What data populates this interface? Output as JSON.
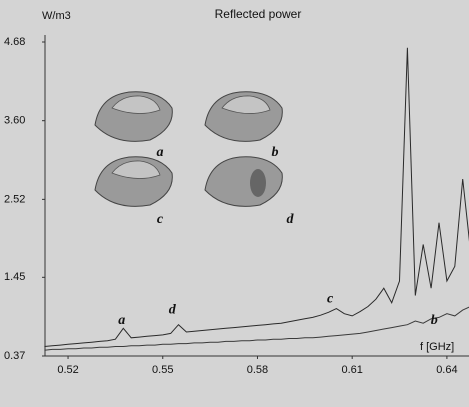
{
  "chart_data": {
    "type": "line",
    "title": "Reflected power",
    "ylabel": "W/m3",
    "xlabel": "f [GHz]",
    "xlim": [
      0.5127,
      0.647
    ],
    "ylim": [
      0.37,
      4.68
    ],
    "xticks": [
      0.52,
      0.55,
      0.58,
      0.61,
      0.64
    ],
    "yticks": [
      0.37,
      1.45,
      2.52,
      {
        "value": 3.6,
        "label": "3.60"
      },
      4.68
    ],
    "x": [
      0.5125,
      0.515,
      0.5175,
      0.52,
      0.5225,
      0.525,
      0.5275,
      0.53,
      0.5325,
      0.535,
      0.5375,
      0.54,
      0.5425,
      0.545,
      0.5475,
      0.55,
      0.5525,
      0.555,
      0.5575,
      0.56,
      0.5625,
      0.565,
      0.5675,
      0.57,
      0.5725,
      0.575,
      0.5775,
      0.58,
      0.5825,
      0.585,
      0.5875,
      0.59,
      0.5925,
      0.595,
      0.5975,
      0.6,
      0.6025,
      0.605,
      0.6075,
      0.61,
      0.6125,
      0.615,
      0.6175,
      0.62,
      0.6225,
      0.625,
      0.6275,
      0.63,
      0.6325,
      0.635,
      0.6375,
      0.64,
      0.6425,
      0.645,
      0.6475
    ],
    "series": [
      {
        "color": "#2a2a2a",
        "values": [
          0.5,
          0.51,
          0.52,
          0.53,
          0.54,
          0.55,
          0.56,
          0.57,
          0.58,
          0.6,
          0.75,
          0.62,
          0.63,
          0.64,
          0.65,
          0.66,
          0.68,
          0.8,
          0.7,
          0.71,
          0.72,
          0.73,
          0.74,
          0.75,
          0.76,
          0.77,
          0.78,
          0.79,
          0.8,
          0.81,
          0.82,
          0.84,
          0.86,
          0.88,
          0.9,
          0.93,
          0.97,
          1.02,
          0.95,
          0.92,
          0.98,
          1.05,
          1.15,
          1.3,
          1.1,
          1.4,
          4.6,
          1.2,
          1.9,
          1.3,
          2.2,
          1.4,
          1.6,
          2.8,
          1.8
        ]
      },
      {
        "color": "#3a3a3a",
        "values": [
          0.45,
          0.46,
          0.46,
          0.47,
          0.47,
          0.48,
          0.48,
          0.49,
          0.49,
          0.5,
          0.5,
          0.51,
          0.51,
          0.52,
          0.52,
          0.53,
          0.53,
          0.54,
          0.54,
          0.55,
          0.55,
          0.56,
          0.56,
          0.57,
          0.57,
          0.58,
          0.58,
          0.59,
          0.59,
          0.6,
          0.6,
          0.61,
          0.61,
          0.62,
          0.62,
          0.63,
          0.64,
          0.65,
          0.66,
          0.67,
          0.68,
          0.7,
          0.72,
          0.74,
          0.76,
          0.78,
          0.8,
          0.85,
          0.82,
          0.88,
          0.9,
          0.95,
          0.92,
          1.0,
          1.05
        ]
      }
    ],
    "annotations": [
      {
        "text": "a",
        "x": 0.537,
        "y": 0.85
      },
      {
        "text": "d",
        "x": 0.553,
        "y": 1.0
      },
      {
        "text": "c",
        "x": 0.603,
        "y": 1.15
      },
      {
        "text": "b",
        "x": 0.636,
        "y": 0.85
      }
    ],
    "panel_labels": [
      "a",
      "b",
      "c",
      "d"
    ],
    "grid": false
  }
}
